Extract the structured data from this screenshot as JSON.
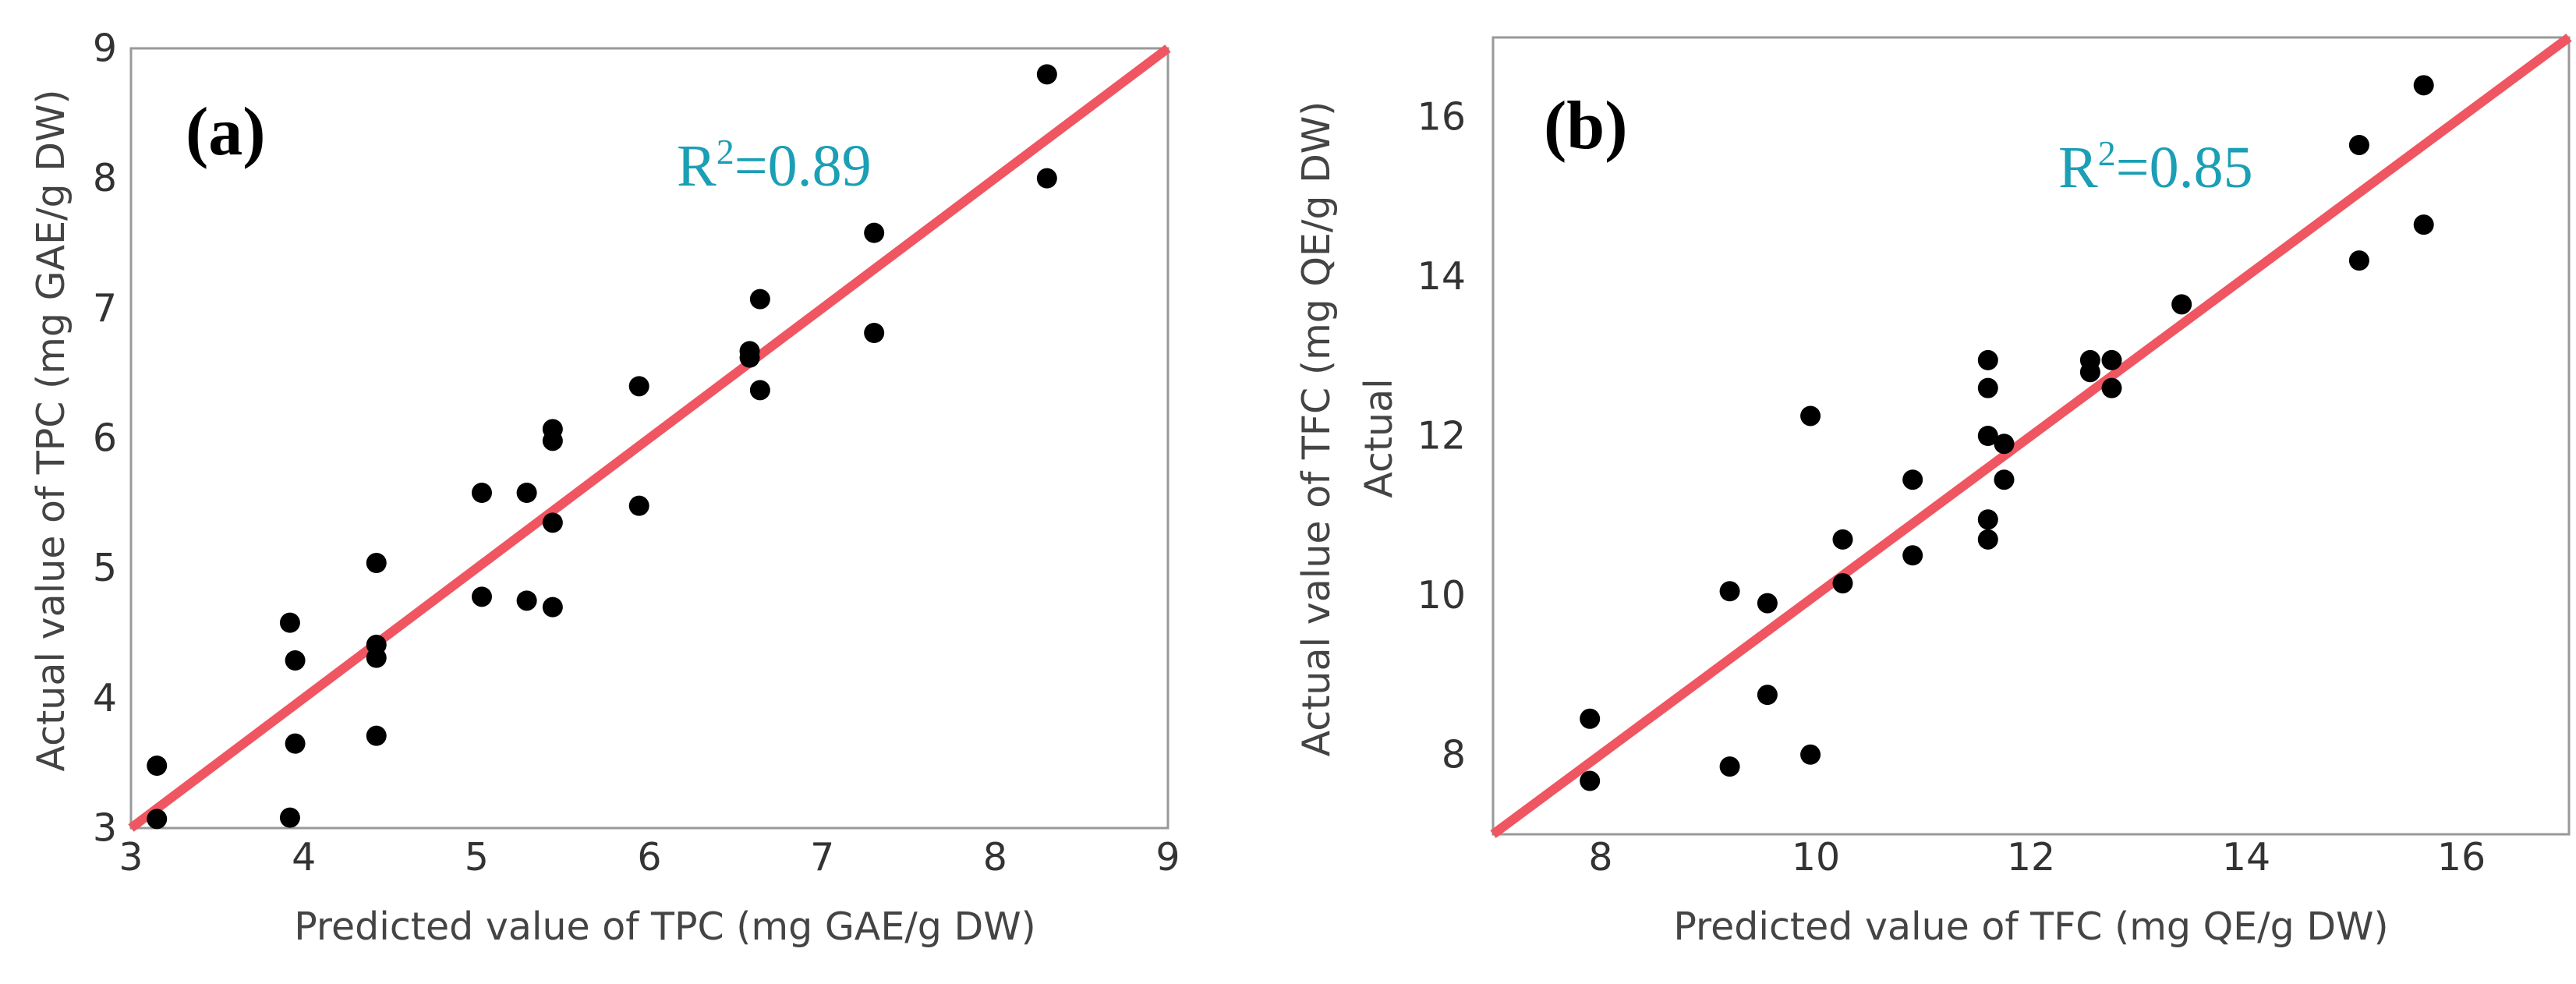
{
  "colors": {
    "point": "#000000",
    "fit_line": "#ef5661",
    "frame": "#999999",
    "r2_text": "#1a9fb5"
  },
  "chart_data": [
    {
      "type": "scatter",
      "panel_label": "(a)",
      "xlabel": "Predicted value of TPC (mg GAE/g DW)",
      "ylabel": "Actual value of TPC (mg GAE/g DW)",
      "ylabel_secondary": "",
      "xlim": [
        3,
        9
      ],
      "ylim": [
        3,
        9
      ],
      "xticks": [
        "3",
        "4",
        "5",
        "6",
        "7",
        "8",
        "9"
      ],
      "yticks": [
        "3",
        "4",
        "5",
        "6",
        "7",
        "8",
        "9"
      ],
      "r2": {
        "prefix": "R",
        "sup": "2",
        "value": "=0.89"
      },
      "fit_line": {
        "from": [
          3,
          3
        ],
        "to": [
          9,
          9
        ]
      },
      "points": [
        [
          3.15,
          3.48
        ],
        [
          3.15,
          3.07
        ],
        [
          3.92,
          4.58
        ],
        [
          3.92,
          3.08
        ],
        [
          3.95,
          4.29
        ],
        [
          3.95,
          3.65
        ],
        [
          4.42,
          5.04
        ],
        [
          4.42,
          4.41
        ],
        [
          4.42,
          4.31
        ],
        [
          4.42,
          3.71
        ],
        [
          5.03,
          5.58
        ],
        [
          5.03,
          4.78
        ],
        [
          5.29,
          5.58
        ],
        [
          5.29,
          4.75
        ],
        [
          5.44,
          6.07
        ],
        [
          5.44,
          5.98
        ],
        [
          5.44,
          5.35
        ],
        [
          5.44,
          4.7
        ],
        [
          5.94,
          6.4
        ],
        [
          5.94,
          5.48
        ],
        [
          6.58,
          6.67
        ],
        [
          6.58,
          6.62
        ],
        [
          6.64,
          7.07
        ],
        [
          6.64,
          6.37
        ],
        [
          7.3,
          7.58
        ],
        [
          7.3,
          6.81
        ],
        [
          8.3,
          8.8
        ],
        [
          8.3,
          8.0
        ]
      ]
    },
    {
      "type": "scatter",
      "panel_label": "(b)",
      "xlabel": "Predicted value of TFC (mg QE/g DW)",
      "ylabel": "Actual value of TFC (mg QE/g DW)",
      "ylabel_secondary": "Actual",
      "xlim": [
        7,
        17
      ],
      "ylim": [
        7,
        17
      ],
      "xticks": [
        "8",
        "10",
        "12",
        "14",
        "16"
      ],
      "yticks": [
        "8",
        "10",
        "12",
        "14",
        "16"
      ],
      "r2": {
        "prefix": "R",
        "sup": "2",
        "value": "=0.85"
      },
      "fit_line": {
        "from": [
          7,
          7
        ],
        "to": [
          17,
          17
        ]
      },
      "points": [
        [
          7.9,
          8.45
        ],
        [
          7.9,
          7.67
        ],
        [
          9.2,
          10.05
        ],
        [
          9.2,
          7.85
        ],
        [
          9.55,
          9.9
        ],
        [
          9.55,
          8.75
        ],
        [
          9.95,
          12.25
        ],
        [
          9.95,
          8.0
        ],
        [
          10.25,
          10.7
        ],
        [
          10.25,
          10.15
        ],
        [
          10.9,
          11.45
        ],
        [
          10.9,
          10.5
        ],
        [
          11.6,
          12.95
        ],
        [
          11.6,
          12.6
        ],
        [
          11.6,
          12.0
        ],
        [
          11.6,
          10.95
        ],
        [
          11.6,
          10.7
        ],
        [
          11.75,
          11.9
        ],
        [
          11.75,
          11.45
        ],
        [
          12.55,
          12.95
        ],
        [
          12.55,
          12.8
        ],
        [
          12.75,
          12.95
        ],
        [
          12.75,
          12.6
        ],
        [
          13.4,
          13.65
        ],
        [
          15.05,
          15.65
        ],
        [
          15.05,
          14.2
        ],
        [
          15.65,
          16.4
        ],
        [
          15.65,
          14.65
        ]
      ]
    }
  ]
}
